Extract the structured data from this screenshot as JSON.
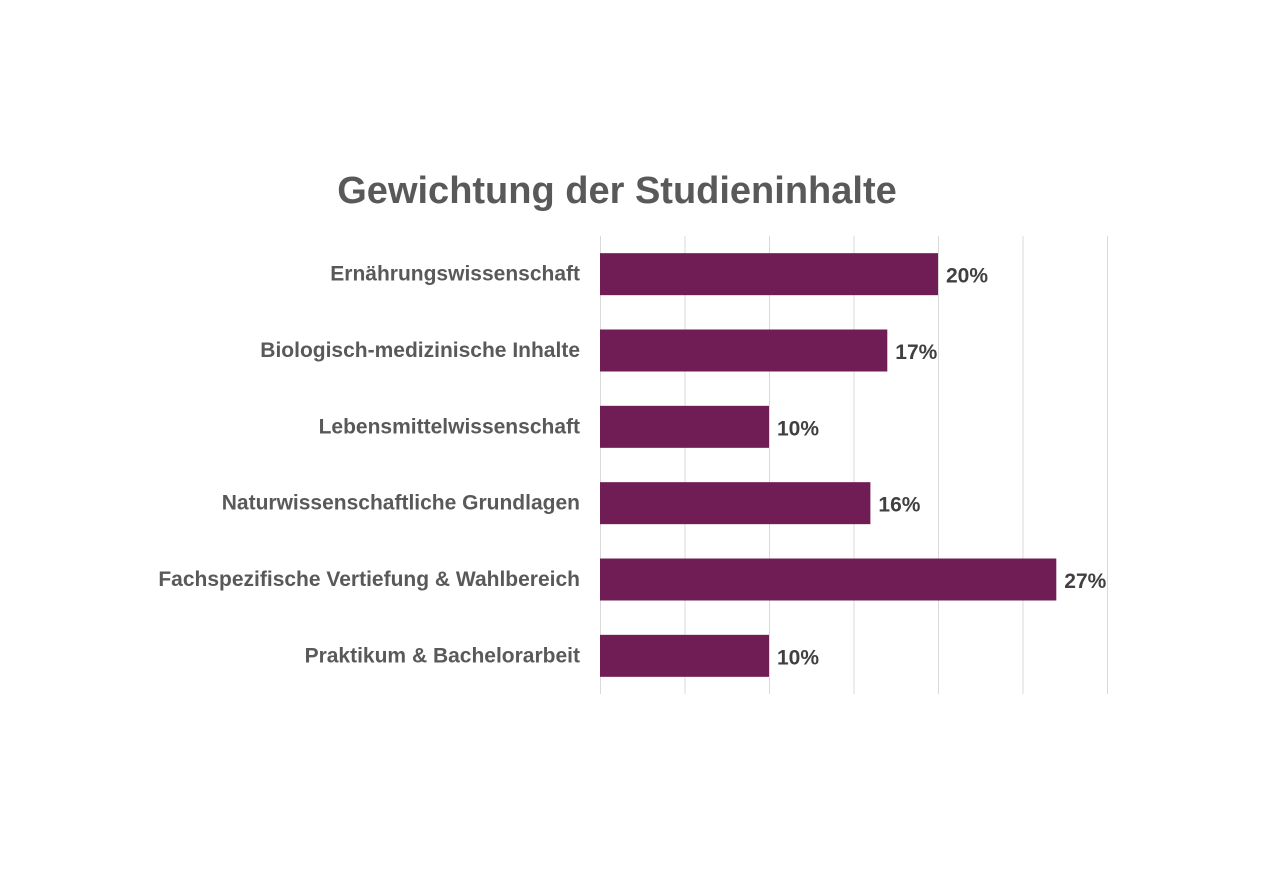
{
  "chart_data": {
    "type": "bar",
    "orientation": "horizontal",
    "title": "Gewichtung der Studieninhalte",
    "categories": [
      "Ernährungswissenschaft",
      "Biologisch-medizinische Inhalte",
      "Lebensmittelwissenschaft",
      "Naturwissenschaftliche Grundlagen",
      "Fachspezifische Vertiefung & Wahlbereich",
      "Praktikum & Bachelorarbeit"
    ],
    "values": [
      20,
      17,
      10,
      16,
      27,
      10
    ],
    "value_labels": [
      "20%",
      "17%",
      "10%",
      "16%",
      "27%",
      "10%"
    ],
    "unit": "%",
    "xlim": [
      0,
      30
    ],
    "grid": true,
    "legend": false,
    "colors": {
      "bar": "#701c55",
      "text": "#595959",
      "grid": "#d9d9d9"
    }
  }
}
